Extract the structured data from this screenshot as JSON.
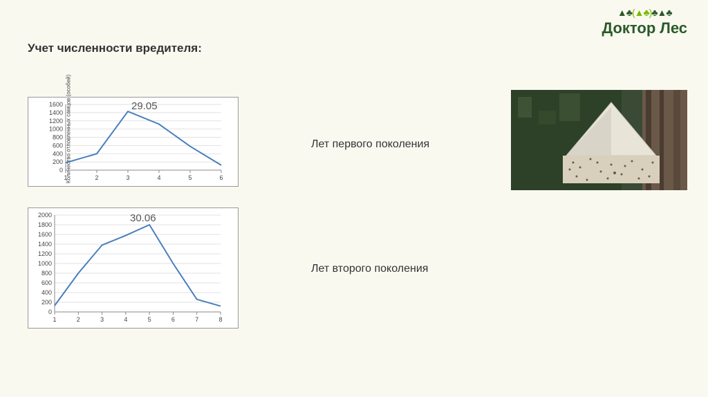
{
  "logo": {
    "trees_left": "▲♣",
    "trees_green": "(▲♣)",
    "trees_right": "♣▲♣",
    "text": "Доктор Лес"
  },
  "title": "Учет численности вредителя:",
  "chart1": {
    "type": "line",
    "annotation": "29.05",
    "x": [
      1,
      2,
      3,
      4,
      5,
      6
    ],
    "y": [
      180,
      400,
      1430,
      1120,
      580,
      120
    ],
    "ylim": [
      0,
      1600
    ],
    "ytick_step": 200,
    "line_color": "#4a7ebb",
    "line_width": 2,
    "grid_color": "#d9d9d9",
    "axis_color": "#888888",
    "tick_font_size": 9,
    "ylabel": "Количество отловленных самцов (особей)",
    "background": "#ffffff"
  },
  "chart2": {
    "type": "line",
    "annotation": "30.06",
    "x": [
      1,
      2,
      3,
      4,
      5,
      6,
      7,
      8
    ],
    "y": [
      130,
      800,
      1380,
      1580,
      1800,
      1000,
      260,
      120
    ],
    "ylim": [
      0,
      2000
    ],
    "ytick_step": 200,
    "line_color": "#4a7ebb",
    "line_width": 2,
    "grid_color": "#d9d9d9",
    "axis_color": "#888888",
    "tick_font_size": 9,
    "background": "#ffffff"
  },
  "caption1": "Лет первого поколения",
  "caption2": "Лет второго поколения",
  "photo": {
    "bg": "#3a4a35",
    "bark": "#5a4a3a",
    "trap": "#e8e4d8"
  }
}
